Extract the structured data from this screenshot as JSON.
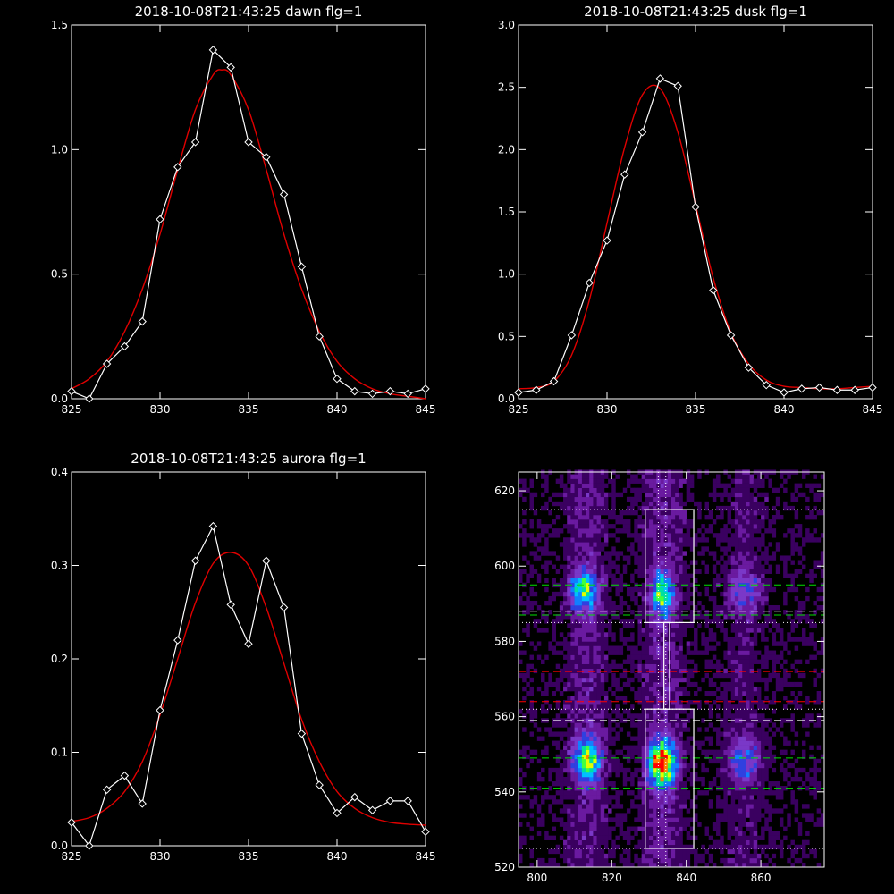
{
  "colors": {
    "background": "#000000",
    "axes": "#ffffff",
    "data_line": "#ffffff",
    "fit_line": "#e00000",
    "green_dash": "#00e000",
    "red_dash": "#ff0000",
    "white_dash": "#ffffff",
    "box": "#ffffff"
  },
  "chart_data": [
    {
      "type": "line",
      "title": "2018-10-08T21:43:25 dawn flg=1",
      "xlabel": "",
      "ylabel": "",
      "xlim": [
        825,
        845
      ],
      "ylim": [
        0,
        1.5
      ],
      "xticks": [
        825,
        830,
        835,
        840,
        845
      ],
      "xtick_labels": [
        "825",
        "830",
        "835",
        "840",
        "845"
      ],
      "yticks": [
        0,
        0.5,
        1.0,
        1.5
      ],
      "ytick_labels": [
        "0.0",
        "0.5",
        "1.0",
        "1.5"
      ],
      "grid": false,
      "series": [
        {
          "role": "data",
          "marker": "diamond",
          "x": [
            825,
            826,
            827,
            828,
            829,
            830,
            831,
            832,
            833,
            834,
            835,
            836,
            837,
            838,
            839,
            840,
            841,
            842,
            843,
            844,
            845
          ],
          "y": [
            0.03,
            0.0,
            0.14,
            0.21,
            0.31,
            0.72,
            0.93,
            1.03,
            1.4,
            1.33,
            1.03,
            0.97,
            0.82,
            0.53,
            0.25,
            0.08,
            0.03,
            0.02,
            0.03,
            0.02,
            0.04
          ]
        },
        {
          "role": "fit",
          "x": [
            825,
            826,
            827,
            828,
            829,
            830,
            831,
            832,
            833,
            833.5,
            834,
            835,
            836,
            837,
            838,
            839,
            840,
            841,
            842,
            843,
            844,
            845
          ],
          "y": [
            0.04,
            0.08,
            0.15,
            0.27,
            0.44,
            0.66,
            0.92,
            1.16,
            1.3,
            1.32,
            1.3,
            1.16,
            0.92,
            0.66,
            0.44,
            0.27,
            0.15,
            0.08,
            0.04,
            0.02,
            0.01,
            0.0
          ]
        }
      ]
    },
    {
      "type": "line",
      "title": "2018-10-08T21:43:25 dusk flg=1",
      "xlabel": "",
      "ylabel": "",
      "xlim": [
        825,
        845
      ],
      "ylim": [
        0,
        3.0
      ],
      "xticks": [
        825,
        830,
        835,
        840,
        845
      ],
      "xtick_labels": [
        "825",
        "830",
        "835",
        "840",
        "845"
      ],
      "yticks": [
        0,
        0.5,
        1.0,
        1.5,
        2.0,
        2.5,
        3.0
      ],
      "ytick_labels": [
        "0.0",
        "0.5",
        "1.0",
        "1.5",
        "2.0",
        "2.5",
        "3.0"
      ],
      "grid": false,
      "series": [
        {
          "role": "data",
          "marker": "diamond",
          "x": [
            825,
            826,
            827,
            828,
            829,
            830,
            831,
            832,
            833,
            834,
            835,
            836,
            837,
            838,
            839,
            840,
            841,
            842,
            843,
            844,
            845
          ],
          "y": [
            0.05,
            0.07,
            0.14,
            0.51,
            0.93,
            1.27,
            1.8,
            2.14,
            2.57,
            2.51,
            1.54,
            0.87,
            0.51,
            0.25,
            0.11,
            0.05,
            0.08,
            0.09,
            0.07,
            0.07,
            0.09
          ]
        },
        {
          "role": "fit",
          "x": [
            825,
            826,
            827,
            828,
            829,
            830,
            831,
            832,
            833,
            834,
            835,
            836,
            837,
            838,
            839,
            840,
            841,
            842,
            843,
            844,
            845
          ],
          "y": [
            0.08,
            0.09,
            0.14,
            0.35,
            0.79,
            1.41,
            2.02,
            2.44,
            2.49,
            2.14,
            1.56,
            0.97,
            0.53,
            0.28,
            0.15,
            0.1,
            0.09,
            0.08,
            0.08,
            0.09,
            0.1
          ]
        }
      ]
    },
    {
      "type": "line",
      "title": "2018-10-08T21:43:25 aurora flg=1",
      "xlabel": "",
      "ylabel": "",
      "xlim": [
        825,
        845
      ],
      "ylim": [
        0,
        0.4
      ],
      "xticks": [
        825,
        830,
        835,
        840,
        845
      ],
      "xtick_labels": [
        "825",
        "830",
        "835",
        "840",
        "845"
      ],
      "yticks": [
        0,
        0.1,
        0.2,
        0.3,
        0.4
      ],
      "ytick_labels": [
        "0.0",
        "0.1",
        "0.2",
        "0.3",
        "0.4"
      ],
      "grid": false,
      "series": [
        {
          "role": "data",
          "marker": "diamond",
          "x": [
            825,
            826,
            827,
            828,
            829,
            830,
            831,
            832,
            833,
            834,
            835,
            836,
            837,
            838,
            839,
            840,
            841,
            842,
            843,
            844,
            845
          ],
          "y": [
            0.025,
            0.0,
            0.06,
            0.075,
            0.045,
            0.145,
            0.22,
            0.305,
            0.342,
            0.258,
            0.216,
            0.305,
            0.255,
            0.12,
            0.065,
            0.035,
            0.052,
            0.038,
            0.048,
            0.048,
            0.015
          ]
        },
        {
          "role": "fit",
          "x": [
            825,
            826,
            827,
            828,
            829,
            830,
            831,
            832,
            833,
            834,
            835,
            836,
            837,
            838,
            839,
            840,
            841,
            842,
            843,
            844,
            845
          ],
          "y": [
            0.026,
            0.03,
            0.04,
            0.058,
            0.09,
            0.14,
            0.2,
            0.26,
            0.302,
            0.314,
            0.3,
            0.255,
            0.195,
            0.135,
            0.09,
            0.058,
            0.04,
            0.03,
            0.025,
            0.023,
            0.022
          ]
        }
      ]
    },
    {
      "type": "heatmap",
      "title": "",
      "xlabel": "",
      "ylabel": "",
      "xlim": [
        795,
        877
      ],
      "ylim": [
        520,
        625
      ],
      "xticks": [
        800,
        820,
        840,
        860
      ],
      "xtick_labels": [
        "800",
        "820",
        "840",
        "860"
      ],
      "yticks": [
        520,
        540,
        560,
        580,
        600,
        620
      ],
      "ytick_labels": [
        "520",
        "540",
        "560",
        "580",
        "600",
        "620"
      ],
      "grid": false,
      "colormap": [
        "#000000",
        "#3a0060",
        "#6a1aa0",
        "#7a38c8",
        "#3040e0",
        "#1080ff",
        "#00c0ff",
        "#00e0a0",
        "#40ff40",
        "#e0ff00",
        "#ff8000",
        "#ff0000"
      ],
      "blobs": [
        {
          "x": 813,
          "y": 548,
          "peak": 0.62,
          "sx": 2.5,
          "sy": 4.0
        },
        {
          "x": 833,
          "y": 547,
          "peak": 1.0,
          "sx": 2.3,
          "sy": 4.0
        },
        {
          "x": 812,
          "y": 593,
          "peak": 0.55,
          "sx": 2.5,
          "sy": 3.5
        },
        {
          "x": 833,
          "y": 592,
          "peak": 0.6,
          "sx": 2.0,
          "sy": 3.8
        },
        {
          "x": 855,
          "y": 548,
          "peak": 0.3,
          "sx": 3.0,
          "sy": 4.0
        },
        {
          "x": 855,
          "y": 593,
          "peak": 0.25,
          "sx": 3.0,
          "sy": 4.0
        }
      ],
      "overlays": {
        "boxes": [
          {
            "x0": 829,
            "x1": 842,
            "y0": 585,
            "y1": 615
          },
          {
            "x0": 829,
            "x1": 842,
            "y0": 525,
            "y1": 562
          },
          {
            "x0": 834,
            "x1": 835.5,
            "y0": 562,
            "y1": 585
          }
        ],
        "white_dotted_h": [
          615,
          585,
          562,
          525
        ],
        "white_dotted_v": [
          832.5,
          834.5
        ],
        "green_dashed_h": [
          595,
          587,
          549,
          541
        ],
        "white_dashed_h": [
          588,
          559
        ],
        "red_dashed_h": [
          572,
          564
        ]
      }
    }
  ]
}
